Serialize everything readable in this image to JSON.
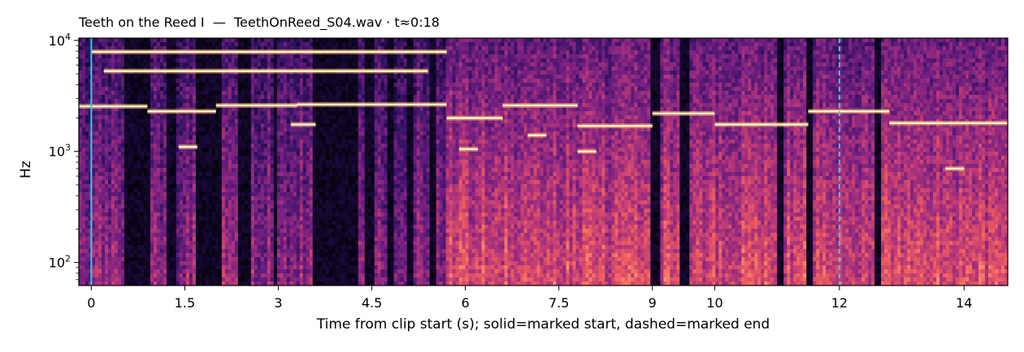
{
  "chart_data": {
    "type": "heatmap",
    "title": "Teeth on the Reed I  —  TeethOnReed_S04.wav · t≈0:18",
    "xlabel": "Time from clip start (s); solid=marked start, dashed=marked end",
    "ylabel": "Hz",
    "x_scale": "linear",
    "y_scale": "log",
    "xlim": [
      -0.2,
      14.7
    ],
    "ylim": [
      62,
      10500
    ],
    "x_ticks": [
      {
        "value": 0,
        "label": "0"
      },
      {
        "value": 1.5,
        "label": "1.5"
      },
      {
        "value": 3,
        "label": "3"
      },
      {
        "value": 4.5,
        "label": "4.5"
      },
      {
        "value": 6,
        "label": "6"
      },
      {
        "value": 7.5,
        "label": "7.5"
      },
      {
        "value": 9,
        "label": "9"
      },
      {
        "value": 10,
        "label": "10"
      },
      {
        "value": 12,
        "label": "12"
      },
      {
        "value": 14,
        "label": "14"
      }
    ],
    "y_ticks": [
      {
        "value": 100,
        "base": "10",
        "exp": "2"
      },
      {
        "value": 1000,
        "base": "10",
        "exp": "3"
      },
      {
        "value": 10000,
        "base": "10",
        "exp": "4"
      }
    ],
    "colormap": [
      "#000004",
      "#2c115f",
      "#721f81",
      "#b73779",
      "#f1605d",
      "#feb078",
      "#fcfdbf"
    ],
    "markers": [
      {
        "x": 0,
        "style": "solid",
        "color": "#22d3e6"
      },
      {
        "x": 12,
        "style": "dashed",
        "color": "#22d3e6"
      }
    ],
    "harmonic_bands": [
      {
        "t_start": -0.2,
        "t_end": 0.9,
        "freq": 2550
      },
      {
        "t_start": 0.9,
        "t_end": 2.0,
        "freq": 2300
      },
      {
        "t_start": 2.0,
        "t_end": 3.3,
        "freq": 2600
      },
      {
        "t_start": 3.2,
        "t_end": 3.6,
        "freq": 1750
      },
      {
        "t_start": 3.3,
        "t_end": 5.7,
        "freq": 2650
      },
      {
        "t_start": 1.4,
        "t_end": 1.7,
        "freq": 1100
      },
      {
        "t_start": 5.7,
        "t_end": 6.6,
        "freq": 2000
      },
      {
        "t_start": 5.9,
        "t_end": 6.2,
        "freq": 1050
      },
      {
        "t_start": 6.6,
        "t_end": 7.8,
        "freq": 2600
      },
      {
        "t_start": 7.0,
        "t_end": 7.3,
        "freq": 1400
      },
      {
        "t_start": 7.8,
        "t_end": 9.0,
        "freq": 1700
      },
      {
        "t_start": 7.8,
        "t_end": 8.1,
        "freq": 1000
      },
      {
        "t_start": 9.0,
        "t_end": 10.0,
        "freq": 2200
      },
      {
        "t_start": 10.0,
        "t_end": 11.5,
        "freq": 1750
      },
      {
        "t_start": 11.5,
        "t_end": 12.8,
        "freq": 2300
      },
      {
        "t_start": 12.8,
        "t_end": 14.7,
        "freq": 1800
      },
      {
        "t_start": 13.7,
        "t_end": 14.0,
        "freq": 700
      },
      {
        "t_start": 0.0,
        "t_end": 5.7,
        "freq": 7900
      },
      {
        "t_start": 0.2,
        "t_end": 5.4,
        "freq": 5300
      }
    ],
    "silent_segments": [
      [
        0.55,
        0.95
      ],
      [
        1.2,
        1.35
      ],
      [
        1.65,
        2.1
      ],
      [
        2.35,
        2.55
      ],
      [
        2.9,
        3.0
      ],
      [
        3.55,
        4.3
      ],
      [
        4.4,
        4.55
      ],
      [
        4.75,
        4.85
      ],
      [
        5.05,
        5.15
      ],
      [
        5.45,
        5.55
      ],
      [
        8.95,
        9.1
      ],
      [
        9.45,
        9.6
      ],
      [
        11.0,
        11.1
      ],
      [
        11.45,
        11.55
      ],
      [
        12.55,
        12.65
      ]
    ]
  }
}
